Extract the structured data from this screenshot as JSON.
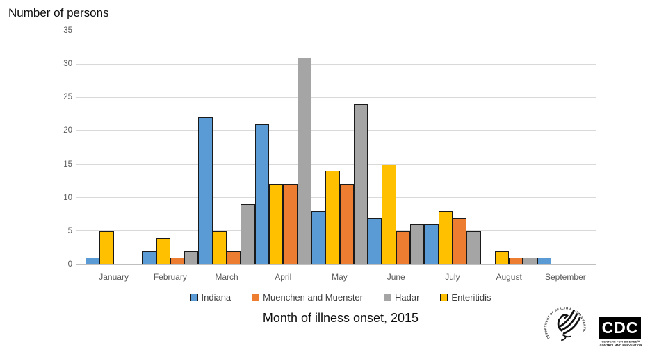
{
  "page": {
    "background": "#FFFFFF"
  },
  "chart": {
    "title": "Number of persons",
    "x_axis_title": "Month of illness onset, 2015"
  },
  "chart_data": {
    "type": "bar",
    "title": "Number of persons",
    "xlabel": "Month of illness onset, 2015",
    "ylabel": "Number of persons",
    "ylim": [
      0,
      35
    ],
    "yticks": [
      0,
      5,
      10,
      15,
      20,
      25,
      30,
      35
    ],
    "grid": true,
    "legend_position": "bottom",
    "categories": [
      "January",
      "February",
      "March",
      "April",
      "May",
      "June",
      "July",
      "August",
      "September"
    ],
    "series": [
      {
        "name": "Indiana",
        "color": "#5B9BD5",
        "values": [
          1,
          2,
          22,
          21,
          8,
          7,
          6,
          0,
          1
        ]
      },
      {
        "name": "Muenchen and Muenster",
        "color": "#ED7D31",
        "values": [
          0,
          1,
          2,
          12,
          12,
          5,
          7,
          1,
          0
        ]
      },
      {
        "name": "Hadar",
        "color": "#A5A5A5",
        "values": [
          0,
          2,
          9,
          31,
          24,
          6,
          5,
          1,
          0
        ]
      },
      {
        "name": "Enteritidis",
        "color": "#FFC000",
        "values": [
          5,
          4,
          5,
          12,
          14,
          15,
          8,
          2,
          0
        ]
      }
    ],
    "bar_display_order": [
      0,
      3,
      1,
      2
    ],
    "bar_border_color": "#1a1a1a",
    "gridline_color": "#D9D9D9",
    "axis_text_color": "#595959"
  },
  "logos": {
    "hhs_seal_text": "DEPARTMENT OF HEALTH & HUMAN SERVICES • USA",
    "cdc_acronym": "CDC",
    "cdc_tagline_line1": "CENTERS FOR DISEASE™",
    "cdc_tagline_line2": "CONTROL AND PREVENTION"
  }
}
